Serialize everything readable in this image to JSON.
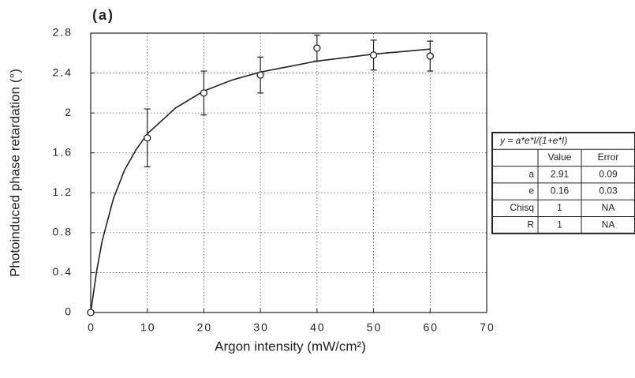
{
  "chart_data": {
    "type": "scatter",
    "title": "(a)",
    "x_label": "Argon intensity  (mW/cm²)",
    "y_label": "Photoinduced phase retardation (°)",
    "xlim": [
      0,
      70
    ],
    "ylim": [
      0,
      2.8
    ],
    "xticks": [
      0,
      10,
      20,
      30,
      40,
      50,
      60,
      70
    ],
    "yticks": [
      0,
      0.4,
      0.8,
      1.2,
      1.6,
      2,
      2.4,
      2.8
    ],
    "grid": true,
    "x": [
      0,
      10,
      20,
      30,
      40,
      50,
      60
    ],
    "series": [
      {
        "values": [
          0,
          1.75,
          2.2,
          2.38,
          2.65,
          2.58,
          2.57
        ],
        "errors": [
          0,
          0.29,
          0.22,
          0.18,
          0.13,
          0.15,
          0.15
        ],
        "color": "#222222"
      }
    ],
    "fit": {
      "x": [
        0,
        1,
        2,
        4,
        6,
        8,
        10,
        15,
        20,
        25,
        30,
        40,
        50,
        60
      ],
      "y": [
        0,
        0.4,
        0.71,
        1.14,
        1.43,
        1.63,
        1.79,
        2.05,
        2.22,
        2.33,
        2.41,
        2.52,
        2.59,
        2.64
      ],
      "color": "#222222"
    }
  },
  "fit_table": {
    "equation": "y  =  a*e*I/(1+e*I)",
    "columns": [
      "Value",
      "Error"
    ],
    "rows": [
      [
        "a",
        2.91,
        0.09
      ],
      [
        "e",
        0.16,
        0.03
      ],
      [
        "Chisq",
        1,
        "NA"
      ],
      [
        "R",
        1,
        "NA"
      ]
    ]
  }
}
